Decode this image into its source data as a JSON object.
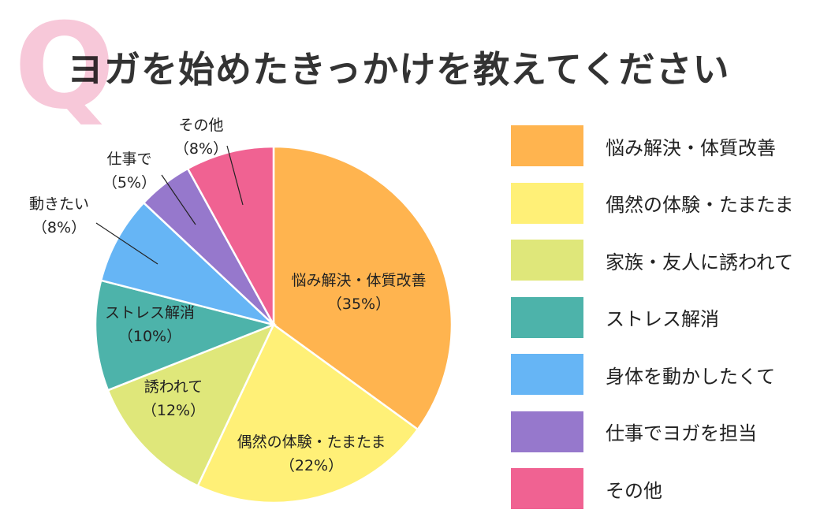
{
  "title_mark": "Q",
  "title": "ヨガを始めたきっかけを教えてください",
  "chart_data": {
    "type": "pie",
    "start": "top",
    "direction": "clockwise",
    "slices": [
      {
        "label": "悩み解決・体質改善",
        "short": "悩み解決・体質改善",
        "value": 35,
        "pct": "（35%）",
        "color": "#ffb44f"
      },
      {
        "label": "偶然の体験・たまたま",
        "short": "偶然の体験・たまたま",
        "value": 22,
        "pct": "（22%）",
        "color": "#fff077"
      },
      {
        "label": "家族・友人に誘われて",
        "short": "誘われて",
        "value": 12,
        "pct": "（12%）",
        "color": "#dfe77a"
      },
      {
        "label": "ストレス解消",
        "short": "ストレス解消",
        "value": 10,
        "pct": "（10%）",
        "color": "#4db3aa"
      },
      {
        "label": "身体を動かしたくて",
        "short": "動きたい",
        "value": 8,
        "pct": "（8%）",
        "color": "#66b5f5"
      },
      {
        "label": "仕事でヨガを担当",
        "short": "仕事で",
        "value": 5,
        "pct": "（5%）",
        "color": "#9678cc"
      },
      {
        "label": "その他",
        "short": "その他",
        "value": 8,
        "pct": "（8%）",
        "color": "#f06292"
      }
    ],
    "legend_placement": "right"
  }
}
